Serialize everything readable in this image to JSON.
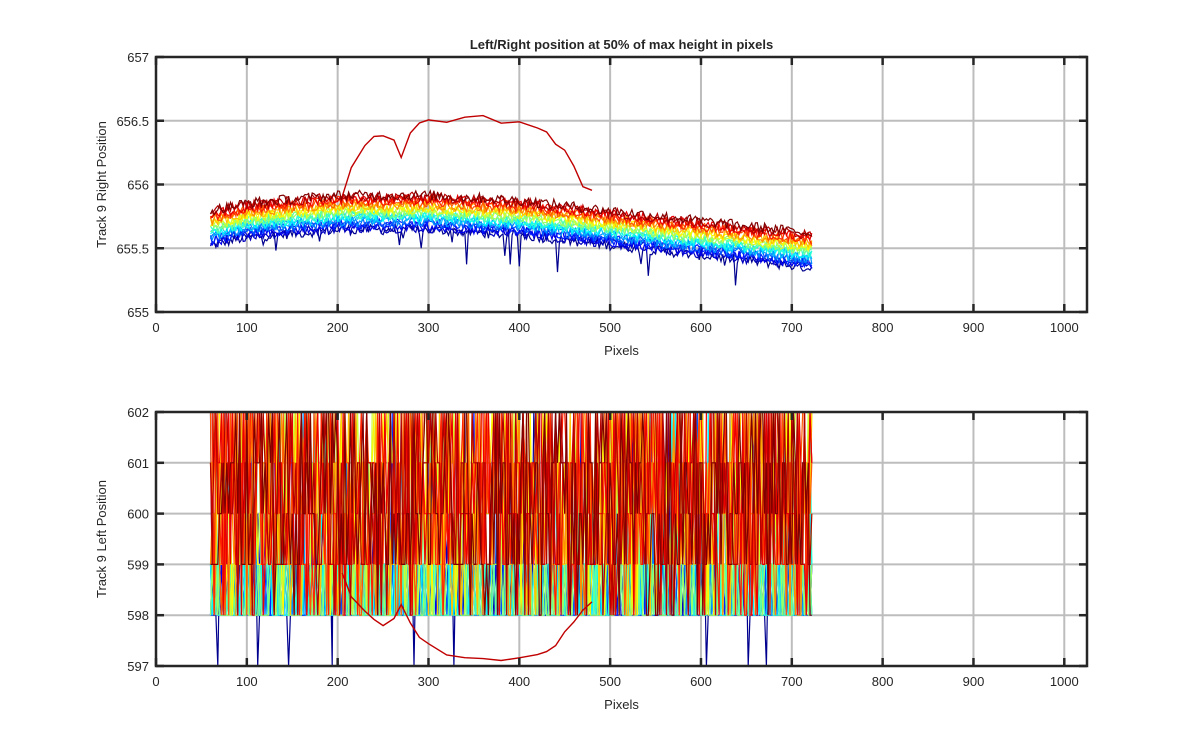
{
  "chart_data": [
    {
      "type": "line",
      "title": "Left/Right position at 50% of max height in pixels",
      "xlabel": "Pixels",
      "ylabel": "Track 9 Right Position",
      "xlim": [
        0,
        1025
      ],
      "ylim": [
        655,
        657
      ],
      "grid": true,
      "x_ticks": [
        0,
        100,
        200,
        300,
        400,
        500,
        600,
        700,
        800,
        900,
        1000
      ],
      "y_ticks": [
        655,
        655.5,
        656,
        656.5,
        657
      ],
      "y_tick_labels": [
        "655",
        "655.5",
        "656",
        "656.5",
        "657"
      ],
      "data_x_range": [
        60,
        723
      ],
      "series_count": 20,
      "colormap": [
        "#00008f",
        "#0000ff",
        "#0080ff",
        "#00ffff",
        "#80ff80",
        "#ffff00",
        "#ff8000",
        "#ff0000",
        "#800000"
      ],
      "band_center": {
        "x": [
          60,
          100,
          200,
          300,
          400,
          500,
          600,
          700,
          723
        ],
        "y": [
          655.66,
          655.72,
          655.78,
          655.78,
          655.74,
          655.66,
          655.58,
          655.5,
          655.48
        ]
      },
      "band_spread": 0.27,
      "outlier_series": {
        "color": "#c00000",
        "x": [
          205,
          215,
          230,
          240,
          250,
          262,
          270,
          280,
          290,
          300,
          320,
          340,
          360,
          380,
          400,
          420,
          430,
          440,
          450,
          460,
          470,
          480
        ],
        "y": [
          655.9,
          656.15,
          656.3,
          656.38,
          656.4,
          656.35,
          656.2,
          656.42,
          656.48,
          656.52,
          656.5,
          656.52,
          656.55,
          656.5,
          656.48,
          656.45,
          656.42,
          656.3,
          656.25,
          656.15,
          656.0,
          655.95
        ]
      }
    },
    {
      "type": "line",
      "title": "",
      "xlabel": "Pixels",
      "ylabel": "Track 9 Left Position",
      "xlim": [
        0,
        1025
      ],
      "ylim": [
        597,
        602
      ],
      "grid": true,
      "x_ticks": [
        0,
        100,
        200,
        300,
        400,
        500,
        600,
        700,
        800,
        900,
        1000
      ],
      "y_ticks": [
        597,
        598,
        599,
        600,
        601,
        602
      ],
      "y_tick_labels": [
        "597",
        "598",
        "599",
        "600",
        "601",
        "602"
      ],
      "data_x_range": [
        60,
        723
      ],
      "data_y_values": [
        598,
        599,
        600,
        601,
        602
      ],
      "series_count": 20,
      "colormap": [
        "#00008f",
        "#0000ff",
        "#0080ff",
        "#00ffff",
        "#80ff80",
        "#ffff00",
        "#ff8000",
        "#ff0000",
        "#800000"
      ],
      "outlier_series": {
        "color": "#c00000",
        "x": [
          205,
          215,
          230,
          240,
          250,
          262,
          270,
          280,
          290,
          300,
          320,
          340,
          360,
          380,
          400,
          420,
          430,
          440,
          450,
          460,
          470,
          480
        ],
        "y": [
          598.8,
          598.4,
          598.1,
          597.9,
          597.8,
          597.9,
          598.2,
          597.8,
          597.6,
          597.45,
          597.25,
          597.15,
          597.1,
          597.08,
          597.12,
          597.18,
          597.3,
          597.45,
          597.65,
          597.85,
          598.1,
          598.3
        ]
      }
    }
  ]
}
